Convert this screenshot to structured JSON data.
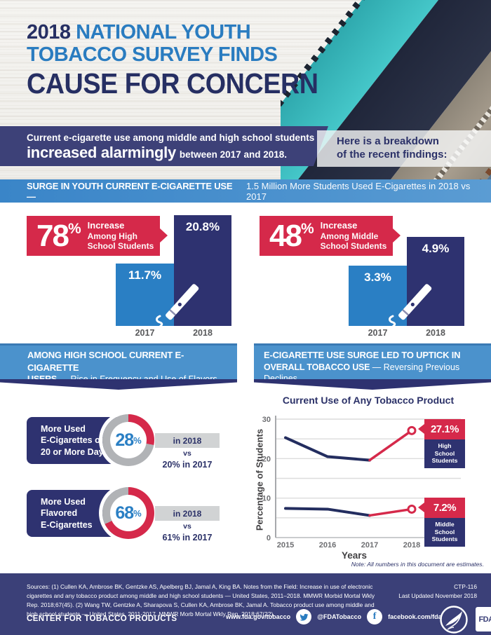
{
  "colors": {
    "red": "#d5294a",
    "navy": "#2e3270",
    "blue": "#2a7fc4",
    "banner_navy": "#3d4178",
    "section_blue": "#4b92cc",
    "surge_blue": "#3a86c8",
    "donut_gray": "#b1b3b6",
    "gray_bar": "#d1d3d4",
    "year_gray": "#58595b",
    "title_navy": "#262f63"
  },
  "icons": [
    "e-cigarette-icon",
    "twitter-icon",
    "facebook-icon",
    "hhs-logo",
    "fda-logo"
  ],
  "header": {
    "year": "2018",
    "title_line1_rest": "NATIONAL YOUTH",
    "title_line2": "TOBACCO SURVEY FINDS",
    "title_line3": "CAUSE FOR CONCERN"
  },
  "intro": {
    "line1": "Current e-cigarette use among middle and high school students",
    "emphasis": "increased alarmingly",
    "line2_rest": "between 2017 and 2018.",
    "aside_line1": "Here is a breakdown",
    "aside_line2": "of the recent findings:"
  },
  "surge": {
    "bold": "SURGE IN YOUTH CURRENT E-CIGARETTE USE —",
    "rest": "1.5 Million More Students Used E-Cigarettes in 2018 vs 2017"
  },
  "bar_charts": [
    {
      "pct": "78",
      "pct_sign": "%",
      "label_lines": [
        "Increase",
        "Among High",
        "School Students"
      ],
      "bars": [
        {
          "year": "2017",
          "label": "11.7%",
          "value": 11.7
        },
        {
          "year": "2018",
          "label": "20.8%",
          "value": 20.8
        }
      ]
    },
    {
      "pct": "48",
      "pct_sign": "%",
      "label_lines": [
        "Increase",
        "Among Middle",
        "School Students"
      ],
      "bars": [
        {
          "year": "2017",
          "label": "3.3%",
          "value": 3.3
        },
        {
          "year": "2018",
          "label": "4.9%",
          "value": 4.9
        }
      ]
    }
  ],
  "section_headers": [
    {
      "line1": "AMONG HIGH SCHOOL CURRENT E-CIGARETTE",
      "line2_bold": "USERS",
      "line2_rest": "— Rise in Frequency and Use of Flavors"
    },
    {
      "line1": "E-CIGARETTE USE SURGE LED TO UPTICK IN",
      "line2_bold": "OVERALL TOBACCO USE",
      "line2_rest": "— Reversing Previous Declines"
    }
  ],
  "donuts": [
    {
      "title_lines": [
        "More Used",
        "E-Cigarettes on",
        "20 or More Days"
      ],
      "pct": "28",
      "pct_sign": "%",
      "value": 28,
      "in_year": "in 2018",
      "vs": "vs",
      "prev": "20% in 2017"
    },
    {
      "title_lines": [
        "More Used",
        "Flavored",
        "E-Cigarettes"
      ],
      "pct": "68",
      "pct_sign": "%",
      "value": 68,
      "in_year": "in 2018",
      "vs": "vs",
      "prev": "61% in 2017"
    }
  ],
  "chart_data": {
    "type": "line",
    "title": "Current Use of Any Tobacco Product",
    "xlabel": "Years",
    "ylabel": "Percentage of Students",
    "x": [
      "2015",
      "2016",
      "2017",
      "2018"
    ],
    "ylim": [
      0,
      30
    ],
    "yticks": [
      0,
      10,
      20,
      30
    ],
    "grid": true,
    "legend_position": "right-callouts",
    "series": [
      {
        "name": "High School Students",
        "name_lines": [
          "High",
          "School",
          "Students"
        ],
        "values": [
          25.3,
          20.5,
          19.6,
          27.1
        ],
        "callout": "27.1%",
        "highlight_segment": "2017-2018"
      },
      {
        "name": "Middle School Students",
        "name_lines": [
          "Middle",
          "School",
          "Students"
        ],
        "values": [
          7.4,
          7.2,
          5.6,
          7.2
        ],
        "callout": "7.2%",
        "highlight_segment": "2017-2018"
      }
    ],
    "note": "Note: All numbers in this document are estimates."
  },
  "footer": {
    "sources": "Sources: (1) Cullen KA, Ambrose BK, Gentzke AS, Apelberg BJ, Jamal A, King BA. Notes from the Field: Increase in use of electronic cigarettes and any tobacco product among middle and high school students — United States, 2011–2018. MMWR Morbid Mortal Wkly Rep. 2018;67(45). (2) Wang TW, Gentzke A, Sharapova S, Cullen KA, Ambrose BK, Jamal A. Tobacco product use among middle and high school students — United States, 2011-2017. MMWR Morb Mortal Wkly Rep. 2018;67(22).",
    "doc_id": "CTP-116",
    "updated": "Last Updated November 2018",
    "org": "CENTER FOR TOBACCO PRODUCTS",
    "web": "www.fda.gov/tobacco",
    "twitter_handle": "@FDATobacco",
    "facebook": "facebook.com/fda",
    "fda_label": "FDA"
  }
}
